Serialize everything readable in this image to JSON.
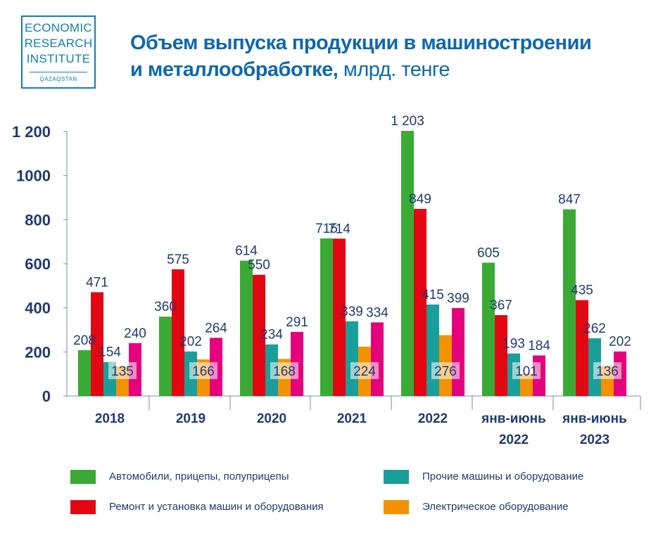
{
  "logo": {
    "line1": "ECONOMIC",
    "line2": "RESEARCH",
    "line3": "INSTITUTE",
    "line4": "QAZAQSTAN"
  },
  "title": {
    "line1": "Объем выпуска продукции в машиностроении",
    "line2": "и металлообработке,",
    "unit": " млрд. тенге"
  },
  "colors": {
    "green": "#3aaa35",
    "red": "#e30613",
    "teal": "#1a9e9a",
    "orange": "#f39200",
    "magenta": "#e5007e",
    "text": "#1f3a73",
    "title": "#0f68ad"
  },
  "chart_data": {
    "type": "bar",
    "categories": [
      "2018",
      "2019",
      "2020",
      "2021",
      "2022",
      "янв-июнь 2022",
      "янв-июнь 2023"
    ],
    "ylim": [
      0,
      1200
    ],
    "yticks": [
      0,
      200,
      400,
      600,
      800,
      1000,
      1200
    ],
    "ytick_labels": [
      "0",
      "200",
      "400",
      "600",
      "800",
      "1000",
      "1 200"
    ],
    "series": [
      {
        "name": "Автомобили, прицепы, полуприцепы",
        "color": "#3aaa35",
        "values": [
          208,
          360,
          614,
          715,
          1203,
          605,
          847
        ],
        "labels": [
          "208",
          "360",
          "614",
          "715",
          "1 203",
          "605",
          "847"
        ]
      },
      {
        "name": "Ремонт и установка машин и оборудования",
        "color": "#e30613",
        "values": [
          471,
          575,
          550,
          714,
          849,
          367,
          435
        ],
        "labels": [
          "471",
          "575",
          "550",
          "714",
          "849",
          "367",
          "435"
        ]
      },
      {
        "name": "Прочие машины и оборудование",
        "color": "#1a9e9a",
        "values": [
          154,
          202,
          234,
          339,
          415,
          193,
          262
        ],
        "labels": [
          "154",
          "202",
          "234",
          "339",
          "415",
          "193",
          "262"
        ]
      },
      {
        "name": "Электрическое оборудование",
        "color": "#f39200",
        "values": [
          135,
          166,
          168,
          224,
          276,
          101,
          136
        ],
        "labels": [
          "135",
          "166",
          "168",
          "224",
          "276",
          "101",
          "136"
        ]
      },
      {
        "name": "",
        "color": "#e5007e",
        "values": [
          240,
          264,
          291,
          334,
          399,
          184,
          202
        ],
        "labels": [
          "240",
          "264",
          "291",
          "334",
          "399",
          "184",
          "202"
        ]
      }
    ],
    "grid": false,
    "legend_position": "bottom"
  },
  "legend": [
    {
      "label": "Автомобили, прицепы, полуприцепы",
      "color": "#3aaa35"
    },
    {
      "label": "Прочие машины и оборудование",
      "color": "#1a9e9a"
    },
    {
      "label": "Ремонт и установка машин и оборудования",
      "color": "#e30613"
    },
    {
      "label": "Электрическое оборудование",
      "color": "#f39200"
    }
  ]
}
